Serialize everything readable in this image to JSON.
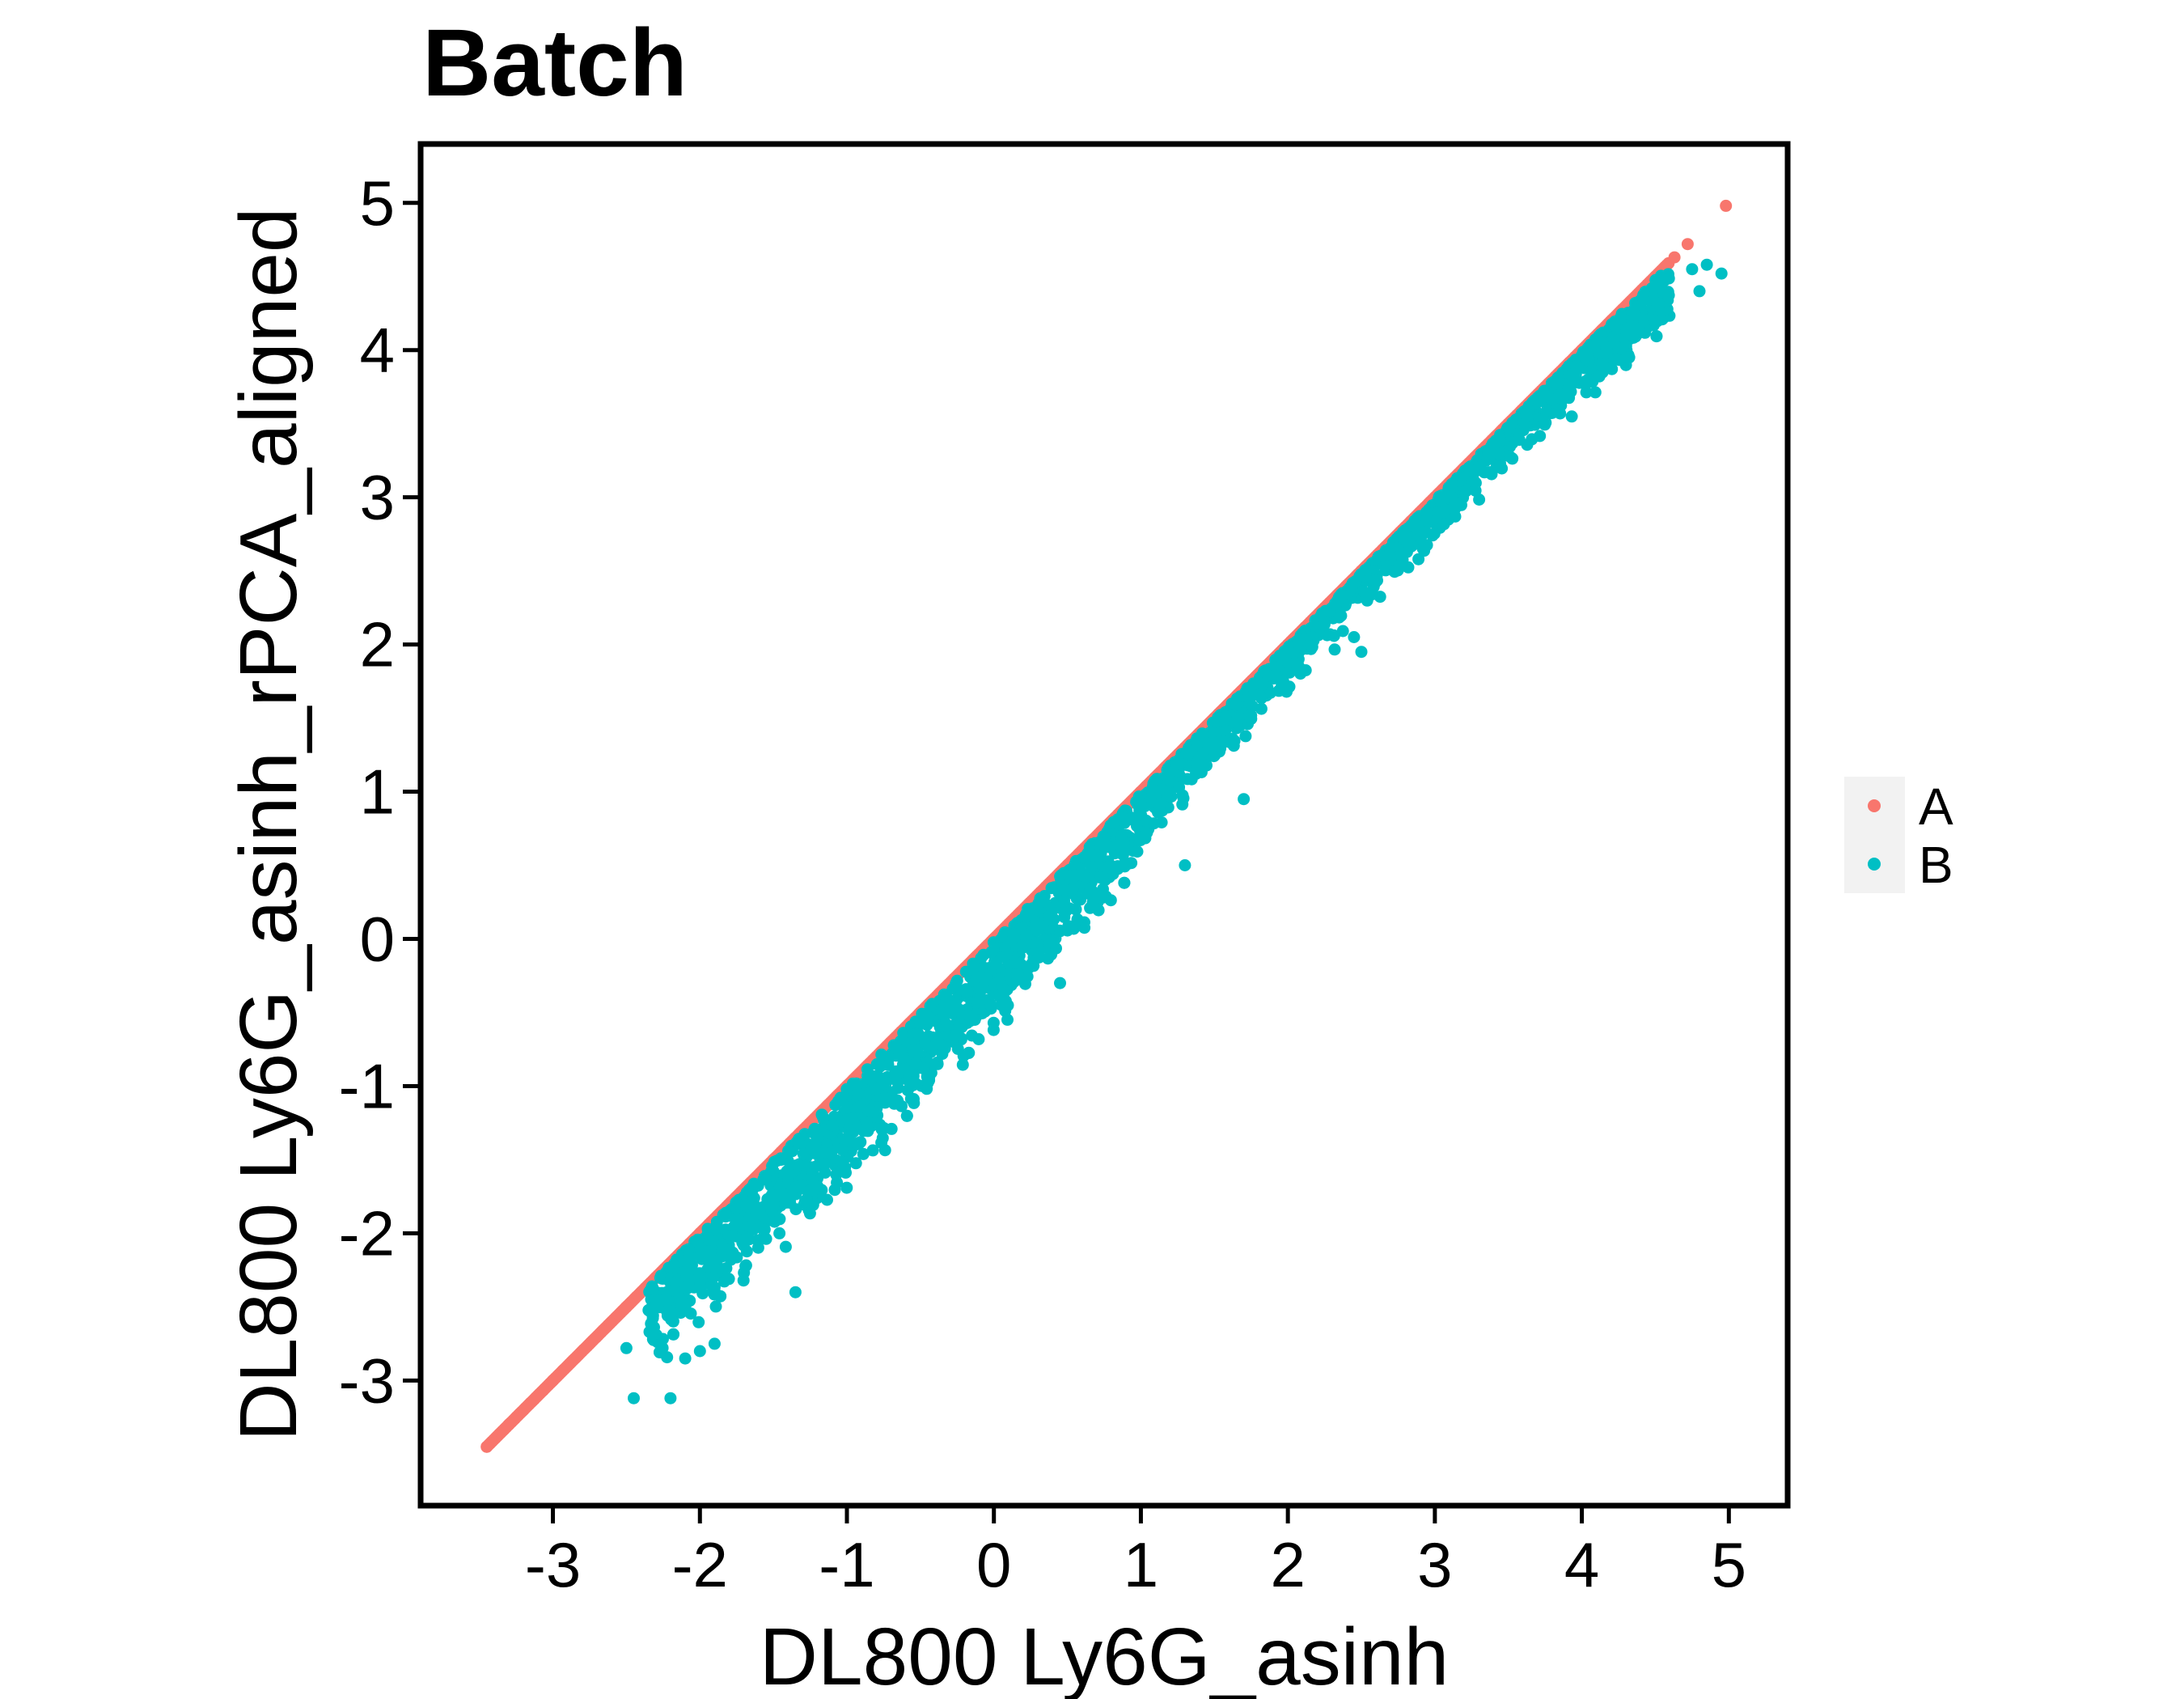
{
  "chart_data": {
    "type": "scatter",
    "title": "Batch",
    "xlabel": "DL800 Ly6G_asinh",
    "ylabel": "DL800 Ly6G_asinh_rPCA_aligned",
    "xlim": [
      -3.9,
      5.4
    ],
    "ylim": [
      -3.85,
      5.4
    ],
    "x_ticks": [
      -3,
      -2,
      -1,
      0,
      1,
      2,
      3,
      4,
      5
    ],
    "y_ticks": [
      -3,
      -2,
      -1,
      0,
      1,
      2,
      3,
      4,
      5
    ],
    "x_tick_labels": [
      "-3",
      "-2",
      "-1",
      "0",
      "1",
      "2",
      "3",
      "4",
      "5"
    ],
    "y_tick_labels": [
      "-3",
      "-2",
      "-1",
      "0",
      "1",
      "2",
      "3",
      "4",
      "5"
    ],
    "grid": false,
    "legend_position": "right",
    "series": [
      {
        "name": "A",
        "color": "#F8766D",
        "description_points": [
          {
            "x": -3.45,
            "y": -3.45
          },
          {
            "x": -3.3,
            "y": -3.3
          },
          {
            "x": -3.0,
            "y": -3.0
          },
          {
            "x": -2.5,
            "y": -2.5
          },
          {
            "x": -2.0,
            "y": -2.0
          },
          {
            "x": -1.5,
            "y": -1.5
          },
          {
            "x": -1.0,
            "y": -1.0
          },
          {
            "x": -0.5,
            "y": -0.5
          },
          {
            "x": 0.0,
            "y": 0.0
          },
          {
            "x": 0.5,
            "y": 0.5
          },
          {
            "x": 1.0,
            "y": 1.0
          },
          {
            "x": 1.5,
            "y": 1.5
          },
          {
            "x": 2.0,
            "y": 2.0
          },
          {
            "x": 2.5,
            "y": 2.5
          },
          {
            "x": 3.0,
            "y": 3.0
          },
          {
            "x": 3.5,
            "y": 3.5
          },
          {
            "x": 4.0,
            "y": 4.0
          },
          {
            "x": 4.5,
            "y": 4.5
          },
          {
            "x": 4.63,
            "y": 4.63
          },
          {
            "x": 4.72,
            "y": 4.72
          },
          {
            "x": 4.98,
            "y": 4.98
          }
        ],
        "x_range": [
          -3.45,
          4.98
        ]
      },
      {
        "name": "B",
        "color": "#00BFC4",
        "x_range": [
          -2.5,
          4.95
        ],
        "trend_points": [
          {
            "x": -2.3,
            "y": -2.45
          },
          {
            "x": -2.0,
            "y": -2.2
          },
          {
            "x": -1.5,
            "y": -1.75
          },
          {
            "x": -1.0,
            "y": -1.3
          },
          {
            "x": -0.5,
            "y": -0.75
          },
          {
            "x": 0.0,
            "y": -0.25
          },
          {
            "x": 0.5,
            "y": 0.3
          },
          {
            "x": 1.0,
            "y": 0.85
          },
          {
            "x": 1.5,
            "y": 1.45
          },
          {
            "x": 2.0,
            "y": 1.95
          },
          {
            "x": 2.5,
            "y": 2.5
          },
          {
            "x": 3.0,
            "y": 2.95
          },
          {
            "x": 3.5,
            "y": 3.5
          },
          {
            "x": 4.0,
            "y": 3.9
          },
          {
            "x": 4.5,
            "y": 4.3
          },
          {
            "x": 4.9,
            "y": 4.5
          }
        ],
        "outliers": [
          {
            "x": -2.5,
            "y": -2.78
          },
          {
            "x": -2.45,
            "y": -3.12
          },
          {
            "x": -2.2,
            "y": -3.12
          },
          {
            "x": -2.1,
            "y": -2.85
          },
          {
            "x": -2.0,
            "y": -2.8
          },
          {
            "x": -1.9,
            "y": -2.75
          },
          {
            "x": -1.35,
            "y": -2.4
          },
          {
            "x": -0.55,
            "y": -0.75
          },
          {
            "x": 0.45,
            "y": -0.3
          },
          {
            "x": 1.3,
            "y": 0.5
          },
          {
            "x": 1.7,
            "y": 0.95
          },
          {
            "x": 2.5,
            "y": 1.95
          },
          {
            "x": 2.45,
            "y": 2.05
          },
          {
            "x": 4.75,
            "y": 4.55
          },
          {
            "x": 4.85,
            "y": 4.58
          },
          {
            "x": 4.95,
            "y": 4.52
          },
          {
            "x": 4.8,
            "y": 4.4
          }
        ]
      }
    ]
  }
}
